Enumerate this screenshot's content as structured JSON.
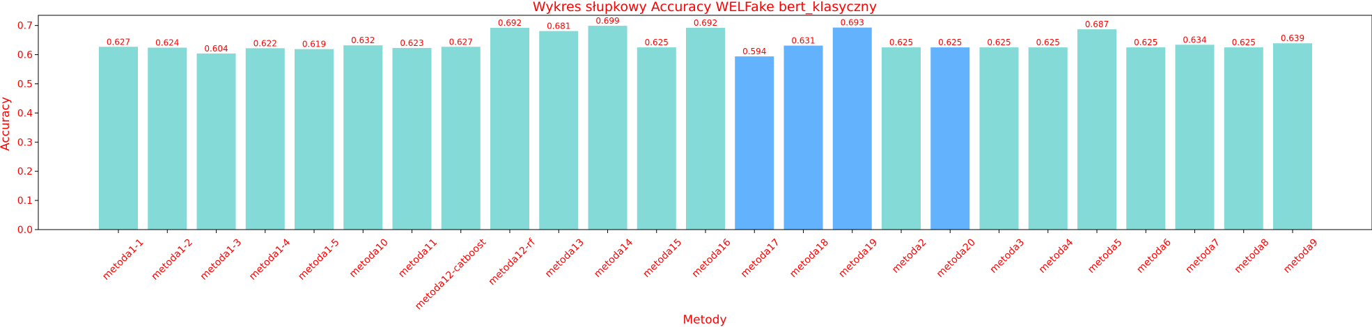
{
  "chart_data": {
    "type": "bar",
    "title": "Wykres słupkowy Accuracy WELFake bert_klasyczny",
    "xlabel": "Metody",
    "ylabel": "Accuracy",
    "ylim": [
      0,
      0.735
    ],
    "yticks": [
      0.0,
      0.1,
      0.2,
      0.3,
      0.4,
      0.5,
      0.6,
      0.7
    ],
    "ytick_labels": [
      "0.0",
      "0.1",
      "0.2",
      "0.3",
      "0.4",
      "0.5",
      "0.6",
      "0.7"
    ],
    "grid": false,
    "categories": [
      "metoda1-1",
      "metoda1-2",
      "metoda1-3",
      "metoda1-4",
      "metoda1-5",
      "metoda10",
      "metoda11",
      "metoda12-catboost",
      "metoda12-rf",
      "metoda13",
      "metoda14",
      "metoda15",
      "metoda16",
      "metoda17",
      "metoda18",
      "metoda19",
      "metoda2",
      "metoda20",
      "metoda3",
      "metoda4",
      "metoda5",
      "metoda6",
      "metoda7",
      "metoda8",
      "metoda9"
    ],
    "values": [
      0.627,
      0.624,
      0.604,
      0.622,
      0.619,
      0.632,
      0.623,
      0.627,
      0.692,
      0.681,
      0.699,
      0.625,
      0.692,
      0.594,
      0.631,
      0.693,
      0.625,
      0.625,
      0.625,
      0.625,
      0.687,
      0.625,
      0.634,
      0.625,
      0.639
    ],
    "value_labels": [
      "0.627",
      "0.624",
      "0.604",
      "0.622",
      "0.619",
      "0.632",
      "0.623",
      "0.627",
      "0.692",
      "0.681",
      "0.699",
      "0.625",
      "0.692",
      "0.594",
      "0.631",
      "0.693",
      "0.625",
      "0.625",
      "0.625",
      "0.625",
      "0.687",
      "0.625",
      "0.634",
      "0.625",
      "0.639"
    ],
    "bar_colors": [
      "#84dad6",
      "#84dad6",
      "#84dad6",
      "#84dad6",
      "#84dad6",
      "#84dad6",
      "#84dad6",
      "#84dad6",
      "#84dad6",
      "#84dad6",
      "#84dad6",
      "#84dad6",
      "#84dad6",
      "#62b2fd",
      "#62b2fd",
      "#62b2fd",
      "#84dad6",
      "#62b2fd",
      "#84dad6",
      "#84dad6",
      "#84dad6",
      "#84dad6",
      "#84dad6",
      "#84dad6",
      "#84dad6"
    ],
    "text_color": "#ff0000"
  }
}
